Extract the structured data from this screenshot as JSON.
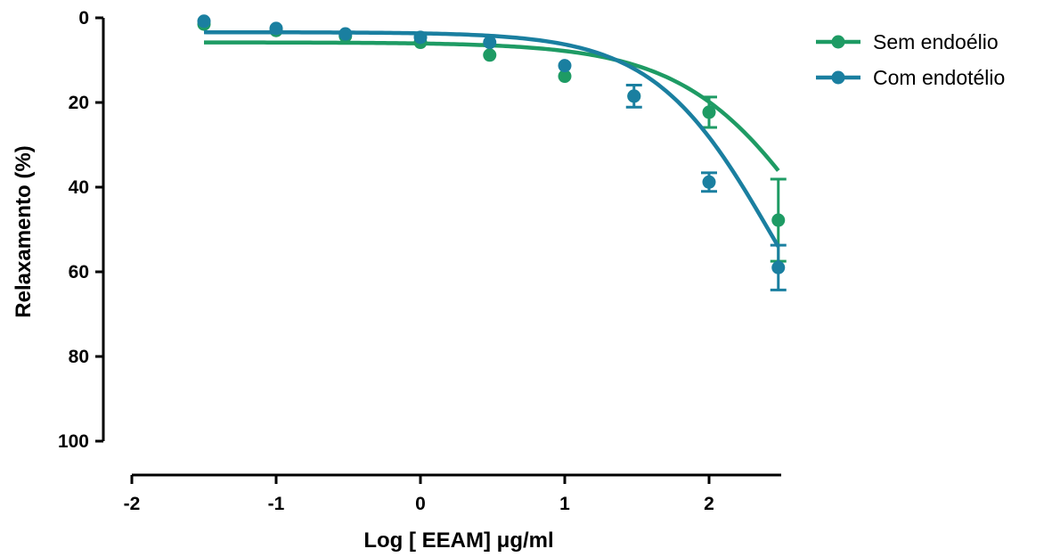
{
  "chart_data": {
    "type": "scatter",
    "xlabel": "Log [ EEAM] μg/ml",
    "ylabel": "Relaxamento (%)",
    "xlim": [
      -2,
      2.5
    ],
    "ylim": [
      0,
      100
    ],
    "y_inverted": true,
    "x_ticks": [
      -2,
      -1,
      0,
      1,
      2
    ],
    "y_ticks": [
      0,
      20,
      40,
      60,
      80,
      100
    ],
    "x_tick_labels": [
      "-2",
      "-1",
      "0",
      "1",
      "2"
    ],
    "y_tick_labels": [
      "0",
      "20",
      "40",
      "60",
      "80",
      "100"
    ],
    "grid": false,
    "legend_position": "top-right",
    "fitted_curves": true,
    "series": [
      {
        "name": "Sem endoélio",
        "color": "#1e9b64",
        "x": [
          -1.5,
          -1.0,
          -0.52,
          0.0,
          0.48,
          1.0,
          1.48,
          2.0,
          2.48
        ],
        "y": [
          1.5,
          3.0,
          4.3,
          5.8,
          8.8,
          13.8,
          18.5,
          22.3,
          47.8
        ],
        "err": [
          0,
          0,
          0,
          0,
          0,
          0,
          0,
          3.6,
          9.7
        ],
        "fit": {
          "bottom": 5.8,
          "top": 100,
          "logEC50": 2.84,
          "hill": 0.9
        }
      },
      {
        "name": "Com endotélio",
        "color": "#1a7fa0",
        "x": [
          -1.5,
          -1.0,
          -0.52,
          0.0,
          0.48,
          1.0,
          1.48,
          2.0,
          2.48
        ],
        "y": [
          0.8,
          2.5,
          3.8,
          4.6,
          5.8,
          11.3,
          18.5,
          38.8,
          59.0
        ],
        "err": [
          0,
          0,
          0,
          0,
          0,
          0,
          2.6,
          2.2,
          5.3
        ],
        "fit": {
          "bottom": 3.4,
          "top": 100,
          "logEC50": 2.44,
          "hill": 1.05
        }
      }
    ]
  }
}
